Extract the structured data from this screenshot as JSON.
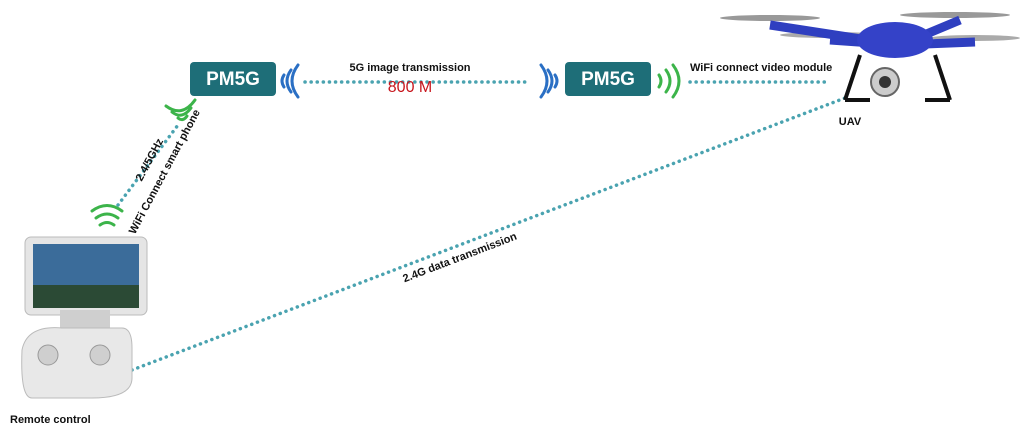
{
  "nodes": [
    {
      "label": "PM5G"
    },
    {
      "label": "PM5G"
    },
    {
      "label": "UAV"
    },
    {
      "label": "Remote control"
    }
  ],
  "links": [
    {
      "label": "5G image transmission",
      "speed": "800 M"
    },
    {
      "label": "WiFi connect video module"
    },
    {
      "label": "2.4G data transmission"
    },
    {
      "label": "2.4/5GHz",
      "sublabel": "WiFi Connect smart phone"
    }
  ]
}
